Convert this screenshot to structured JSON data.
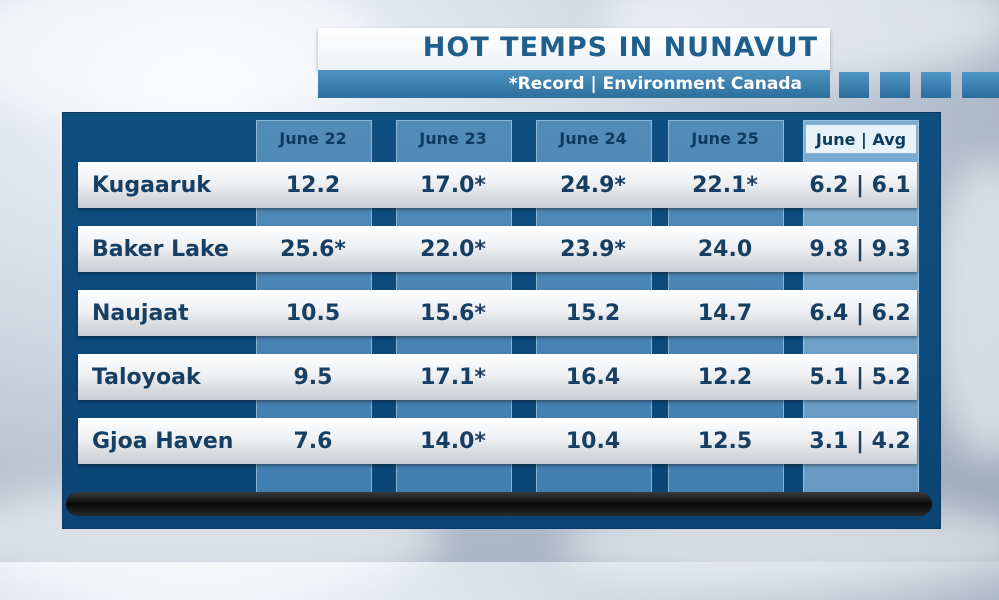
{
  "title": "HOT TEMPS IN NUNAVUT",
  "subtitle": "*Record | Environment Canada",
  "chart_data": {
    "type": "table",
    "title": "HOT TEMPS IN NUNAVUT",
    "subtitle": "*Record | Environment Canada",
    "columns": [
      "June 22",
      "June 23",
      "June 24",
      "June 25",
      "June | Avg"
    ],
    "rows": [
      {
        "label": "Kugaaruk",
        "values": [
          "12.2",
          "17.0*",
          "24.9*",
          "22.1*",
          "6.2 | 6.1"
        ]
      },
      {
        "label": "Baker Lake",
        "values": [
          "25.6*",
          "22.0*",
          "23.9*",
          "24.0",
          "9.8 | 9.3"
        ]
      },
      {
        "label": "Naujaat",
        "values": [
          "10.5",
          "15.6*",
          "15.2",
          "14.7",
          "6.4 | 6.2"
        ]
      },
      {
        "label": "Taloyoak",
        "values": [
          "9.5",
          "17.1*",
          "16.4",
          "12.2",
          "5.1 | 5.2"
        ]
      },
      {
        "label": "Gjoa Haven",
        "values": [
          "7.6",
          "14.0*",
          "10.4",
          "12.5",
          "3.1 | 4.2"
        ]
      }
    ]
  }
}
